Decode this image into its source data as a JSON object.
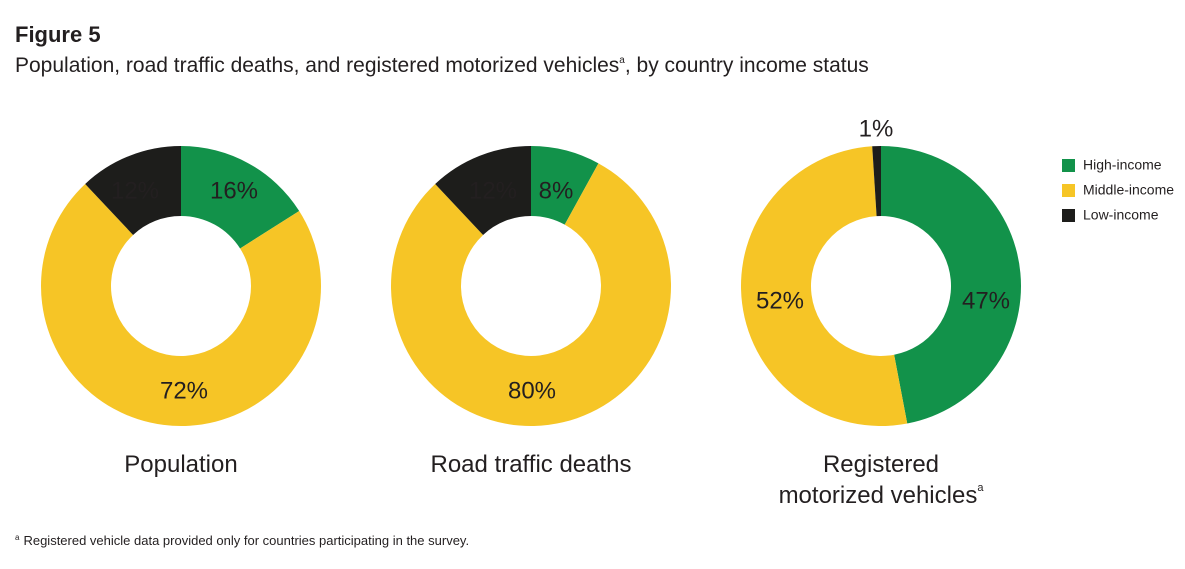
{
  "figure": {
    "label": "Figure 5",
    "title": "Population, road traffic deaths, and registered motorized vehicles",
    "title_sup": "a",
    "title_suffix": ", by country income status",
    "footnote_marker": "a",
    "footnote": "Registered vehicle data provided only for countries participating in the survey."
  },
  "colors": {
    "high_income": "#12924a",
    "middle_income": "#f6c526",
    "low_income": "#1d1d1b"
  },
  "chart_data": [
    {
      "type": "pie",
      "donut": true,
      "caption": [
        "Population"
      ],
      "caption_sup": "",
      "slices": [
        {
          "category": "High-income",
          "value": 16,
          "label": "16%"
        },
        {
          "category": "Middle-income",
          "value": 72,
          "label": "72%"
        },
        {
          "category": "Low-income",
          "value": 12,
          "label": "12%"
        }
      ]
    },
    {
      "type": "pie",
      "donut": true,
      "caption": [
        "Road traffic deaths"
      ],
      "caption_sup": "",
      "slices": [
        {
          "category": "High-income",
          "value": 8,
          "label": "8%"
        },
        {
          "category": "Middle-income",
          "value": 80,
          "label": "80%"
        },
        {
          "category": "Low-income",
          "value": 12,
          "label": "12%"
        }
      ]
    },
    {
      "type": "pie",
      "donut": true,
      "caption": [
        "Registered",
        "motorized vehicles"
      ],
      "caption_sup": "a",
      "slices": [
        {
          "category": "High-income",
          "value": 47,
          "label": "47%"
        },
        {
          "category": "Middle-income",
          "value": 52,
          "label": "52%"
        },
        {
          "category": "Low-income",
          "value": 1,
          "label": "1%"
        }
      ]
    }
  ],
  "legend": {
    "placement": "right",
    "items": [
      {
        "label": "High-income",
        "color_key": "high_income"
      },
      {
        "label": "Middle-income",
        "color_key": "middle_income"
      },
      {
        "label": "Low-income",
        "color_key": "low_income"
      }
    ]
  }
}
